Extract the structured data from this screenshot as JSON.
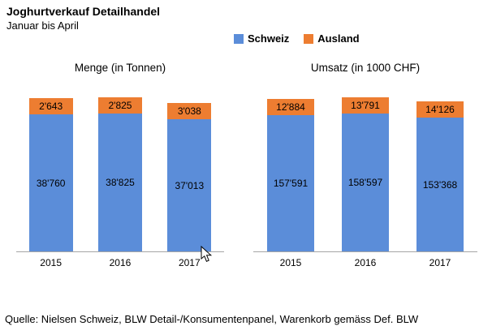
{
  "header": {
    "title": "Joghurtverkauf Detailhandel",
    "subtitle": "Januar bis April"
  },
  "legend": {
    "items": [
      {
        "label": "Schweiz",
        "key": "schweiz"
      },
      {
        "label": "Ausland",
        "key": "ausland"
      }
    ]
  },
  "colors": {
    "schweiz": "#5B8DD9",
    "ausland": "#ED7D31",
    "axis": "#a6a6a6"
  },
  "footer": {
    "source": "Quelle: Nielsen Schweiz, BLW Detail-/Konsumentenpanel, Warenkorb gemäss Def. BLW"
  },
  "chart_data": [
    {
      "type": "bar",
      "stacked": true,
      "id": "menge",
      "title": "Menge (in Tonnen)",
      "categories": [
        "2015",
        "2016",
        "2017"
      ],
      "series": [
        {
          "name": "Schweiz",
          "color_key": "schweiz",
          "values": [
            38760,
            38825,
            37013
          ],
          "labels": [
            "38'760",
            "38'825",
            "37'013"
          ]
        },
        {
          "name": "Ausland",
          "color_key": "ausland",
          "values": [
            2643,
            2825,
            3038
          ],
          "labels": [
            "2'643",
            "2'825",
            "3'038"
          ]
        }
      ],
      "grid": false,
      "legend_position": "top",
      "value_labels": "inside"
    },
    {
      "type": "bar",
      "stacked": true,
      "id": "umsatz",
      "title": "Umsatz (in 1000 CHF)",
      "categories": [
        "2015",
        "2016",
        "2017"
      ],
      "series": [
        {
          "name": "Schweiz",
          "color_key": "schweiz",
          "values": [
            157591,
            158597,
            153368
          ],
          "labels": [
            "157'591",
            "158'597",
            "153'368"
          ]
        },
        {
          "name": "Ausland",
          "color_key": "ausland",
          "values": [
            12884,
            13791,
            14126
          ],
          "labels": [
            "12'884",
            "13'791",
            "14'126"
          ]
        }
      ],
      "grid": false,
      "legend_position": "top",
      "value_labels": "inside"
    }
  ]
}
